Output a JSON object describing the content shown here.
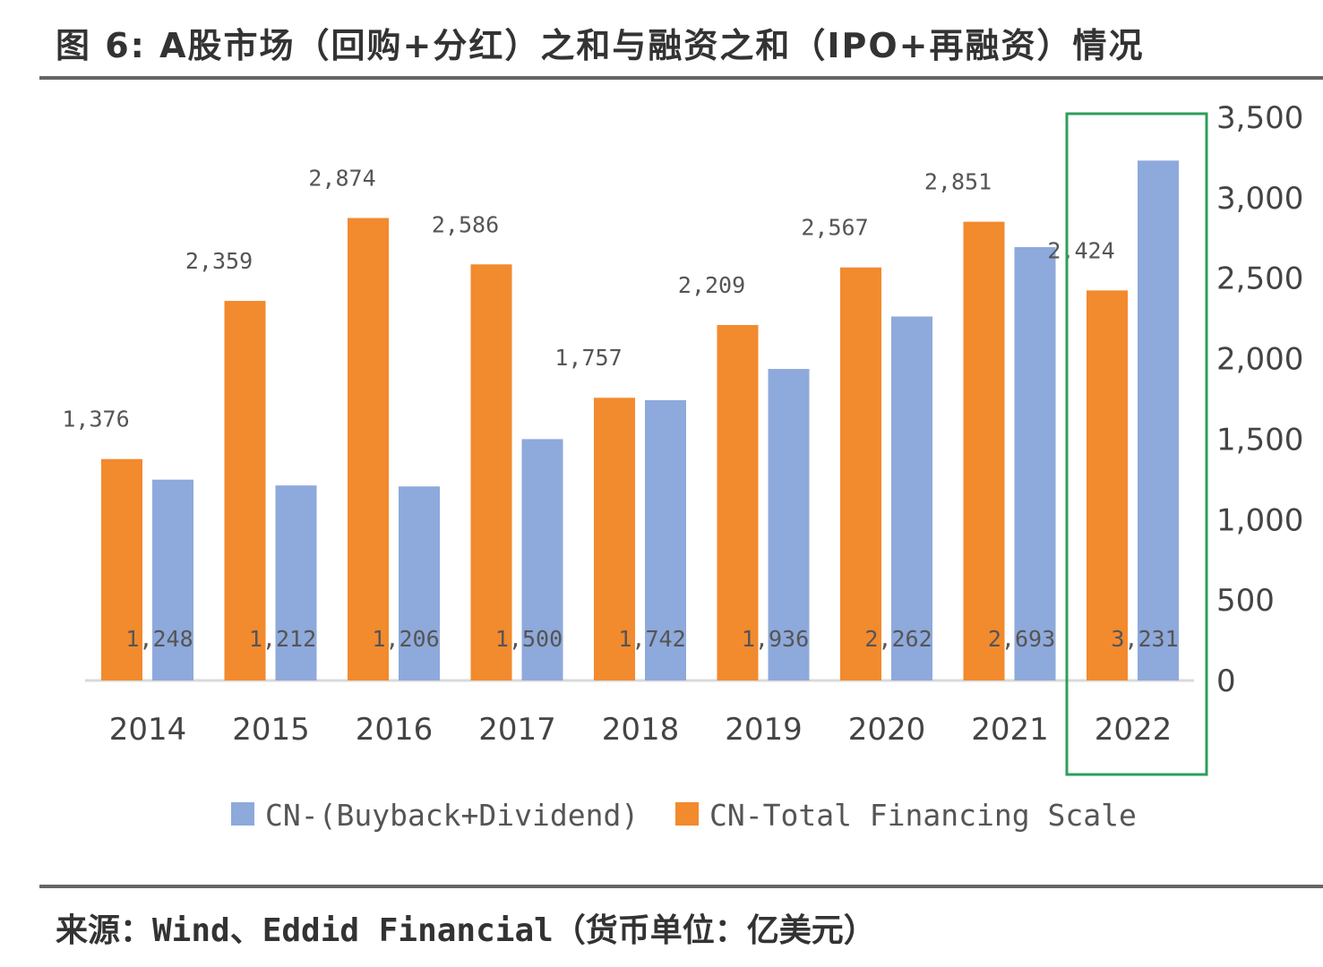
{
  "title": "图 6: A股市场（回购+分红）之和与融资之和（IPO+再融资）情况",
  "source": "来源：Wind、Eddid Financial（货币单位：亿美元）",
  "colors": {
    "buyback_dividend": "#8EA9DB",
    "financing": "#F28A2E",
    "highlight": "#2E9E5B"
  },
  "chart_data": {
    "type": "bar",
    "title": "",
    "xlabel": "",
    "ylabel": "",
    "categories": [
      "2014",
      "2015",
      "2016",
      "2017",
      "2018",
      "2019",
      "2020",
      "2021",
      "2022"
    ],
    "series": [
      {
        "name": "CN-Total Financing Scale",
        "values": [
          1376,
          2359,
          2874,
          2586,
          1757,
          2209,
          2567,
          2851,
          2424
        ],
        "labels": [
          "1,376",
          "2,359",
          "2,874",
          "2,586",
          "1,757",
          "2,209",
          "2,567",
          "2,851",
          "2,424"
        ]
      },
      {
        "name": "CN-(Buyback+Dividend)",
        "values": [
          1248,
          1212,
          1206,
          1500,
          1742,
          1936,
          2262,
          2693,
          3231
        ],
        "labels": [
          "1,248",
          "1,212",
          "1,206",
          "1,500",
          "1,742",
          "1,936",
          "2,262",
          "2,693",
          "3,231"
        ]
      }
    ],
    "ylim": [
      0,
      3500
    ],
    "y_axis_side": "right",
    "yticks": [
      "0",
      "500",
      "1,000",
      "1,500",
      "2,000",
      "2,500",
      "3,000",
      "3,500"
    ],
    "grid": false,
    "legend": {
      "placement": "bottom",
      "entries": [
        "CN-(Buyback+Dividend)",
        "CN-Total Financing Scale"
      ]
    },
    "highlight_category": "2022"
  }
}
